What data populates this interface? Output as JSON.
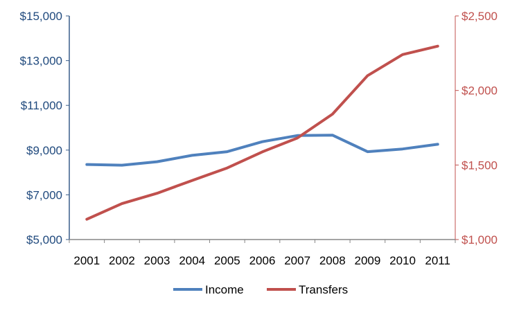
{
  "chart_data": {
    "type": "line",
    "title": "",
    "xlabel": "",
    "categories": [
      "2001",
      "2002",
      "2003",
      "2004",
      "2005",
      "2006",
      "2007",
      "2008",
      "2009",
      "2010",
      "2011"
    ],
    "y_left": {
      "ylim": [
        5000,
        15000
      ],
      "ticks": [
        5000,
        7000,
        9000,
        11000,
        13000,
        15000
      ],
      "tick_labels": [
        "$5,000",
        "$7,000",
        "$9,000",
        "$11,000",
        "$13,000",
        "$15,000"
      ],
      "color": "#1F497D"
    },
    "y_right": {
      "ylim": [
        1000,
        2500
      ],
      "ticks": [
        1000,
        1500,
        2000,
        2500
      ],
      "tick_labels": [
        "$1,000",
        "$1,500",
        "$2,000",
        "$2,500"
      ],
      "color": "#C0504D"
    },
    "series": [
      {
        "name": "Income",
        "axis": "left",
        "color": "#4F81BD",
        "values": [
          8355,
          8325,
          8480,
          8765,
          8930,
          9375,
          9650,
          9670,
          8930,
          9050,
          9260
        ]
      },
      {
        "name": "Transfers",
        "axis": "right",
        "color": "#C0504D",
        "values": [
          1136,
          1241,
          1310,
          1396,
          1480,
          1588,
          1681,
          1841,
          2099,
          2241,
          2297
        ]
      }
    ],
    "grid": false,
    "legend": "bottom"
  }
}
